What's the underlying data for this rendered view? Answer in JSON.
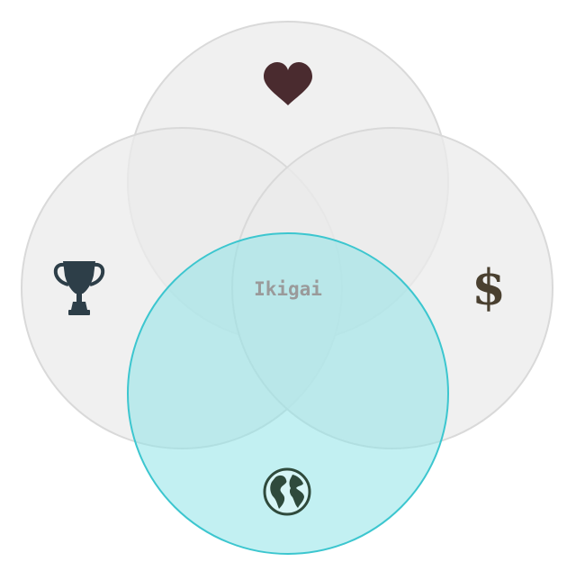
{
  "diagram": {
    "type": "venn",
    "center_label": "Ikigai",
    "circles": [
      {
        "id": "love",
        "icon": "heart-icon",
        "fill": "#ebebeb",
        "stroke": "#d9d9d9",
        "icon_color": "#4a2b2f"
      },
      {
        "id": "skill",
        "icon": "trophy-icon",
        "fill": "#ebebeb",
        "stroke": "#d9d9d9",
        "icon_color": "#2d3e48"
      },
      {
        "id": "paid",
        "icon": "dollar-icon",
        "fill": "#ebebeb",
        "stroke": "#d9d9d9",
        "icon_color": "#4a4030"
      },
      {
        "id": "world",
        "icon": "globe-icon",
        "fill": "#8fe3e8",
        "stroke": "#3cc6cf",
        "icon_color": "#2f4a3c"
      }
    ],
    "center_label_color": "#9a9a9a"
  }
}
